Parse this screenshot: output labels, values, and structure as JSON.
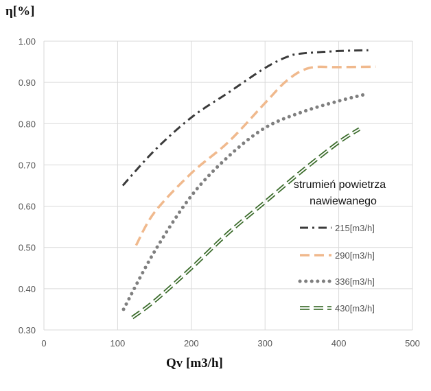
{
  "chart_data": {
    "type": "line",
    "ylabel": "η[%]",
    "xlabel": "Qv [m3/h]",
    "xlim": [
      0,
      500
    ],
    "ylim": [
      0.3,
      1.0
    ],
    "xticks": [
      "0",
      "100",
      "200",
      "300",
      "400",
      "500"
    ],
    "yticks": [
      "0.30",
      "0.40",
      "0.50",
      "0.60",
      "0.70",
      "0.80",
      "0.90",
      "1.00"
    ],
    "grid": true,
    "legend": {
      "title_line1": "strumień powietrza",
      "title_line2": "nawiewanego",
      "placement": "right"
    },
    "series": [
      {
        "name": "215[m3/h]",
        "color": "#3a3a3a",
        "style": "dash-dot",
        "x": [
          107,
          150,
          200,
          250,
          300,
          330,
          350,
          400,
          440
        ],
        "y": [
          0.65,
          0.735,
          0.815,
          0.875,
          0.935,
          0.962,
          0.97,
          0.976,
          0.978
        ]
      },
      {
        "name": "290[m3/h]",
        "color": "#f0b98d",
        "style": "dashed",
        "x": [
          125,
          150,
          200,
          250,
          300,
          330,
          360,
          400,
          450
        ],
        "y": [
          0.505,
          0.585,
          0.68,
          0.755,
          0.85,
          0.905,
          0.935,
          0.937,
          0.938
        ]
      },
      {
        "name": "336[m3/h]",
        "color": "#7f7f7f",
        "style": "dotted",
        "x": [
          108,
          150,
          200,
          250,
          300,
          350,
          400,
          438
        ],
        "y": [
          0.35,
          0.49,
          0.625,
          0.72,
          0.79,
          0.828,
          0.855,
          0.872
        ]
      },
      {
        "name": "430[m3/h]",
        "color": "#3a6b2a",
        "style": "dashed-outline",
        "x": [
          120,
          150,
          200,
          250,
          300,
          350,
          400,
          428
        ],
        "y": [
          0.33,
          0.37,
          0.45,
          0.535,
          0.61,
          0.685,
          0.755,
          0.787
        ]
      }
    ]
  }
}
